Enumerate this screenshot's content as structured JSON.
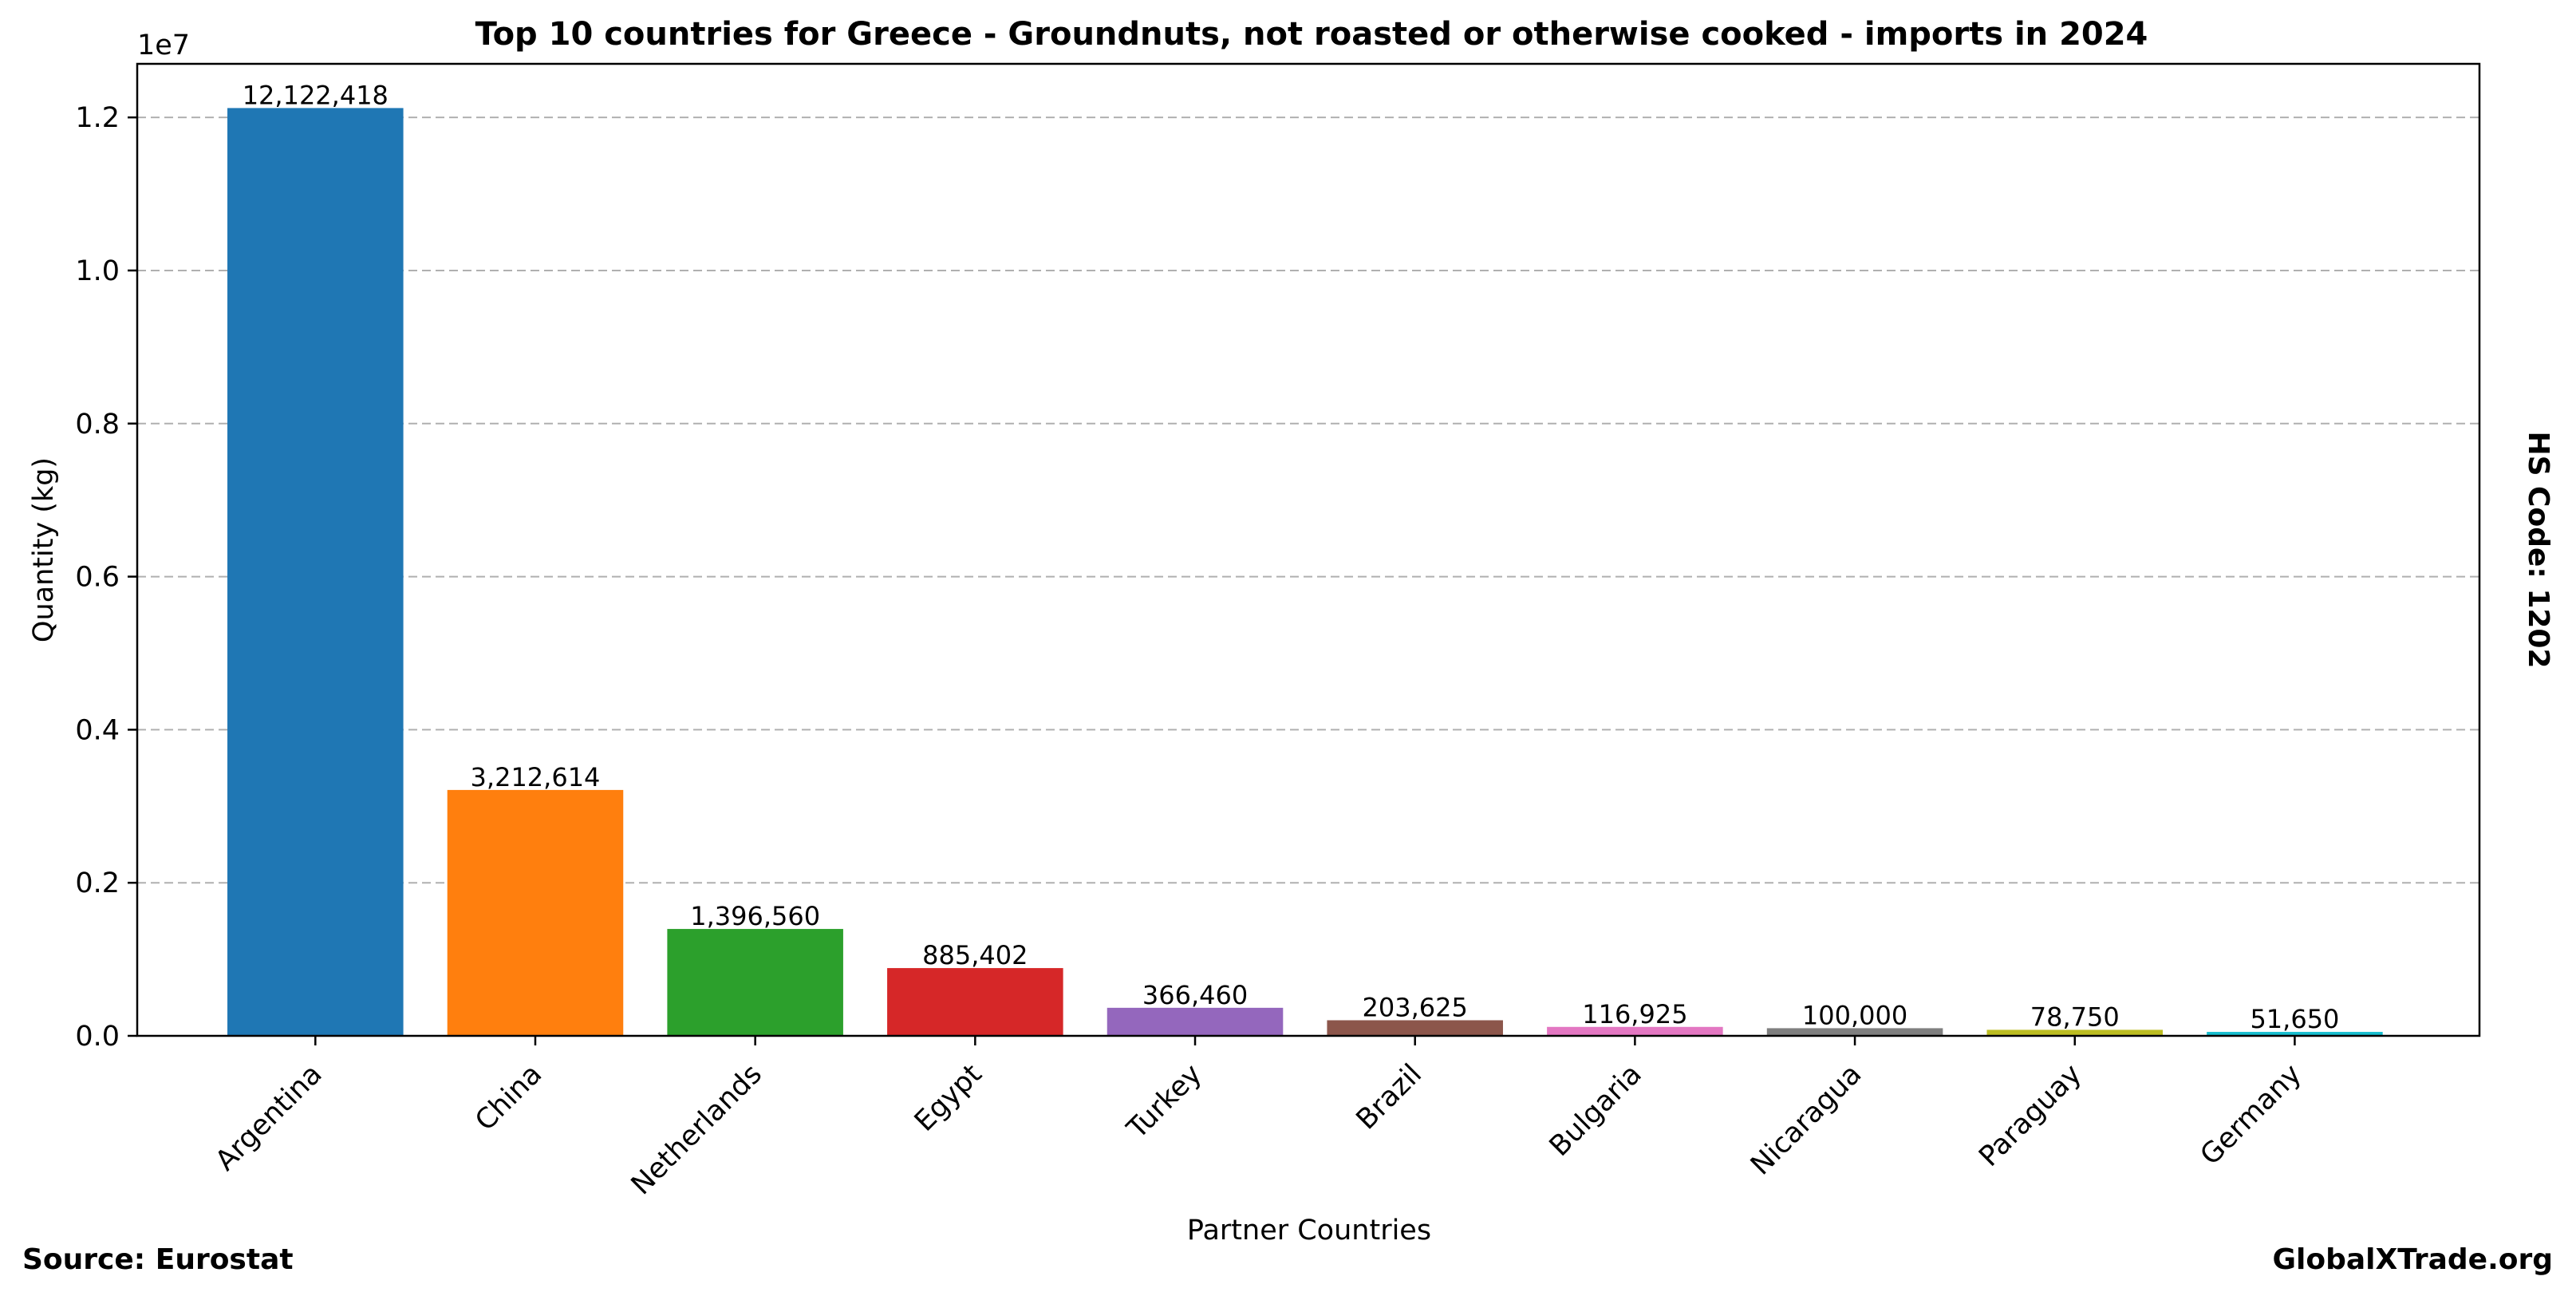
{
  "chart_data": {
    "type": "bar",
    "title": "Top 10 countries for Greece - Groundnuts, not roasted or otherwise cooked - imports in 2024",
    "xlabel": "Partner Countries",
    "ylabel": "Quantity (kg)",
    "y_offset_label": "1e7",
    "ylim": [
      0,
      12700000
    ],
    "yticks": [
      0,
      2000000,
      4000000,
      6000000,
      8000000,
      10000000,
      12000000
    ],
    "ytick_labels": [
      "0.0",
      "0.2",
      "0.4",
      "0.6",
      "0.8",
      "1.0",
      "1.2"
    ],
    "grid": true,
    "categories": [
      "Argentina",
      "China",
      "Netherlands",
      "Egypt",
      "Turkey",
      "Brazil",
      "Bulgaria",
      "Nicaragua",
      "Paraguay",
      "Germany"
    ],
    "values": [
      12122418,
      3212614,
      1396560,
      885402,
      366460,
      203625,
      116925,
      100000,
      78750,
      51650
    ],
    "value_labels": [
      "12,122,418",
      "3,212,614",
      "1,396,560",
      "885,402",
      "366,460",
      "203,625",
      "116,925",
      "100,000",
      "78,750",
      "51,650"
    ],
    "colors": [
      "#1f77b4",
      "#ff7f0e",
      "#2ca02c",
      "#d62728",
      "#9467bd",
      "#8c564b",
      "#e377c2",
      "#7f7f7f",
      "#bcbd22",
      "#17becf"
    ]
  },
  "side_label": "HS Code: 1202",
  "footer": {
    "source": "Source: Eurostat",
    "site": "GlobalXTrade.org"
  }
}
